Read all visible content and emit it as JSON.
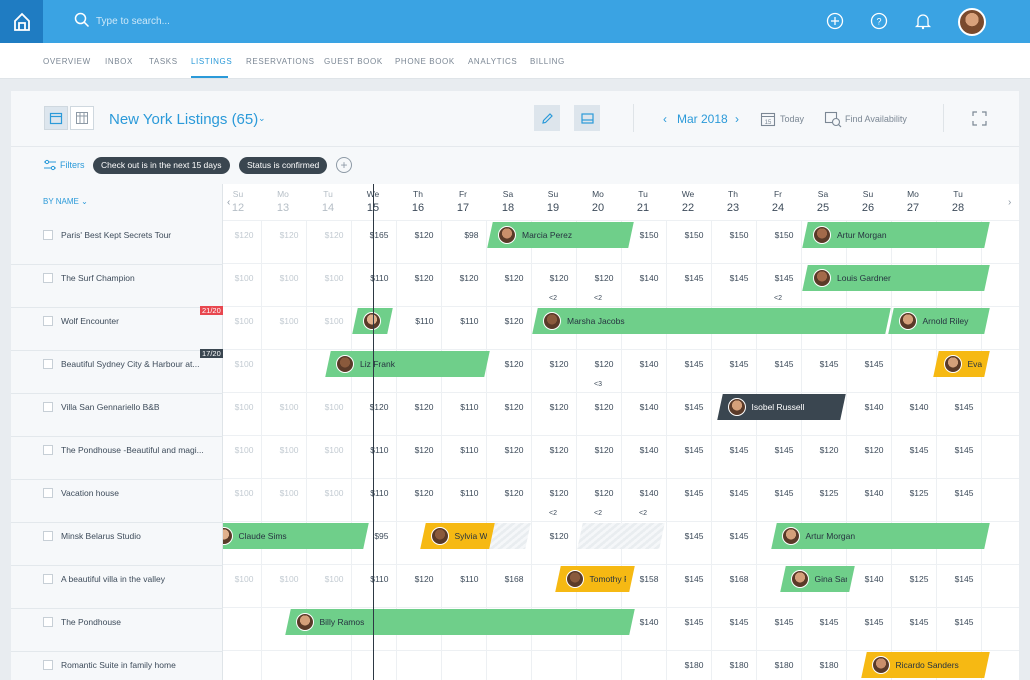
{
  "search": {
    "placeholder": "Type to search..."
  },
  "nav": {
    "items": [
      {
        "label": "OVERVIEW",
        "key": "overview"
      },
      {
        "label": "INBOX",
        "key": "inbox"
      },
      {
        "label": "TASKS",
        "key": "tasks"
      },
      {
        "label": "LISTINGS",
        "key": "listings",
        "active": true
      },
      {
        "label": "RESERVATIONS",
        "key": "reservations"
      },
      {
        "label": "GUEST BOOK",
        "key": "guest-book"
      },
      {
        "label": "PHONE BOOK",
        "key": "phone-book"
      },
      {
        "label": "ANALYTICS",
        "key": "analytics"
      },
      {
        "label": "BILLING",
        "key": "billing"
      }
    ]
  },
  "toolbar": {
    "title": "New York Listings (65)",
    "month": "Mar 2018",
    "today": "Today",
    "find": "Find Availability"
  },
  "filters": {
    "label": "Filters",
    "chips": [
      "Check out is in the next 15 days",
      "Status is confirmed"
    ]
  },
  "sort_label": "BY NAME",
  "colors": {
    "accent": "#2b9ad9",
    "green": "#6fcf8a",
    "yellow": "#f6b913",
    "dark": "#3a4650",
    "red": "#e8474f"
  },
  "days": [
    {
      "dow": "Su",
      "num": "12",
      "past": true
    },
    {
      "dow": "Mo",
      "num": "13",
      "past": true
    },
    {
      "dow": "Tu",
      "num": "14",
      "past": true
    },
    {
      "dow": "We",
      "num": "15"
    },
    {
      "dow": "Th",
      "num": "16"
    },
    {
      "dow": "Fr",
      "num": "17"
    },
    {
      "dow": "Sa",
      "num": "18"
    },
    {
      "dow": "Su",
      "num": "19"
    },
    {
      "dow": "Mo",
      "num": "20"
    },
    {
      "dow": "Tu",
      "num": "21"
    },
    {
      "dow": "We",
      "num": "22"
    },
    {
      "dow": "Th",
      "num": "23"
    },
    {
      "dow": "Fr",
      "num": "24"
    },
    {
      "dow": "Sa",
      "num": "25"
    },
    {
      "dow": "Su",
      "num": "26"
    },
    {
      "dow": "Mo",
      "num": "27"
    },
    {
      "dow": "Tu",
      "num": "28"
    }
  ],
  "listings": [
    {
      "name": "Paris' Best Kept Secrets Tour",
      "prices": [
        "$120",
        "$120",
        "$120",
        "$165",
        "$120",
        "$98",
        "",
        "",
        "",
        "$150",
        "$150",
        "$150",
        "$150",
        "",
        "",
        "",
        ""
      ],
      "bookings": [
        {
          "guest": "Marcia Perez",
          "start": 6.1,
          "end": 9.3,
          "color": "green"
        },
        {
          "guest": "Artur Morgan",
          "start": 13.1,
          "end": 17.2,
          "color": "green"
        }
      ]
    },
    {
      "name": "The Surf Champion",
      "prices": [
        "$100",
        "$100",
        "$100",
        "$110",
        "$120",
        "$120",
        "$120",
        "$120",
        "$120",
        "$140",
        "$145",
        "$145",
        "$145",
        "",
        "",
        "",
        ""
      ],
      "notes": {
        "7": "<2",
        "8": "<2",
        "12": "<2"
      },
      "bookings": [
        {
          "guest": "Louis Gardner",
          "start": 13.1,
          "end": 17.2,
          "color": "green"
        }
      ]
    },
    {
      "name": "Wolf Encounter",
      "badge": "21/20",
      "badge_color": "red",
      "prices": [
        "$100",
        "$100",
        "$100",
        "",
        "$110",
        "$110",
        "$120",
        "",
        "",
        "",
        "",
        "",
        "",
        "",
        "",
        "",
        ""
      ],
      "bookings": [
        {
          "guest": "",
          "start": 3.1,
          "end": 3.95,
          "color": "green"
        },
        {
          "guest": "Marsha Jacobs",
          "start": 7.1,
          "end": 15.0,
          "color": "green"
        },
        {
          "guest": "Arnold Riley",
          "start": 15.0,
          "end": 17.2,
          "color": "green"
        }
      ]
    },
    {
      "name": "Beautiful Sydney City & Harbour at...",
      "badge": "17/20",
      "badge_color": "dark",
      "prices": [
        "$100",
        "",
        "",
        "",
        "",
        "",
        "$120",
        "$120",
        "$120",
        "$140",
        "$145",
        "$145",
        "$145",
        "$145",
        "$145",
        "",
        ""
      ],
      "notes": {
        "8": "<3"
      },
      "bookings": [
        {
          "guest": "Liz Frank",
          "start": 2.5,
          "end": 6.1,
          "color": "green"
        },
        {
          "guest": "Eva Fe",
          "start": 16.0,
          "end": 17.2,
          "color": "yellow"
        }
      ]
    },
    {
      "name": "Villa San Gennariello B&B",
      "prices": [
        "$100",
        "$100",
        "$100",
        "$120",
        "$120",
        "$110",
        "$120",
        "$120",
        "$120",
        "$140",
        "$145",
        "",
        "",
        "",
        "$140",
        "$140",
        "$145"
      ],
      "bookings": [
        {
          "guest": "Isobel Russell",
          "start": 11.2,
          "end": 14.0,
          "color": "dark"
        }
      ]
    },
    {
      "name": "The Pondhouse -Beautiful and magi...",
      "prices": [
        "$100",
        "$100",
        "$100",
        "$110",
        "$120",
        "$110",
        "$120",
        "$120",
        "$120",
        "$140",
        "$145",
        "$145",
        "$145",
        "$120",
        "$120",
        "$145",
        "$145"
      ]
    },
    {
      "name": "Vacation house",
      "prices": [
        "$100",
        "$100",
        "$100",
        "$110",
        "$120",
        "$110",
        "$120",
        "$120",
        "$120",
        "$140",
        "$145",
        "$145",
        "$145",
        "$125",
        "$140",
        "$125",
        "$145"
      ],
      "notes": {
        "7": "<2",
        "8": "<2",
        "9": "<2"
      }
    },
    {
      "name": "Minsk Belarus Studio",
      "prices": [
        "",
        "",
        "",
        "$95",
        "",
        "",
        "",
        "$120",
        "",
        "",
        "$145",
        "$145",
        "",
        "",
        "",
        "",
        ""
      ],
      "bookings": [
        {
          "guest": "Claude Sims",
          "start": -0.2,
          "end": 3.4,
          "color": "green"
        },
        {
          "guest": "Sylvia Wat...",
          "start": 4.6,
          "end": 6.2,
          "color": "yellow"
        },
        {
          "guest": "Artur Morgan",
          "start": 12.4,
          "end": 17.2,
          "color": "green"
        }
      ]
    },
    {
      "name": "A beautiful villa in the valley",
      "prices": [
        "$100",
        "$100",
        "$100",
        "$110",
        "$120",
        "$110",
        "$168",
        "",
        "",
        "$158",
        "$145",
        "$168",
        "",
        "",
        "$140",
        "$125",
        "$145"
      ],
      "bookings": [
        {
          "guest": "Tomothy Fr...",
          "start": 7.6,
          "end": 9.3,
          "color": "yellow"
        },
        {
          "guest": "Gina Sande...",
          "start": 12.6,
          "end": 14.2,
          "color": "green"
        }
      ]
    },
    {
      "name": "The Pondhouse",
      "prices": [
        "",
        "",
        "",
        "",
        "",
        "",
        "",
        "",
        "",
        "$140",
        "$145",
        "$145",
        "$145",
        "$145",
        "$145",
        "$145",
        "$145"
      ],
      "bookings": [
        {
          "guest": "Billy Ramos",
          "start": 1.6,
          "end": 9.3,
          "color": "green"
        }
      ]
    },
    {
      "name": "Romantic Suite in family home",
      "prices": [
        "",
        "",
        "",
        "",
        "",
        "",
        "",
        "",
        "",
        "",
        "$180",
        "$180",
        "$180",
        "$180",
        "",
        "",
        ""
      ],
      "bookings": [
        {
          "guest": "Ricardo Sanders",
          "start": 14.4,
          "end": 17.2,
          "color": "yellow"
        }
      ]
    }
  ]
}
